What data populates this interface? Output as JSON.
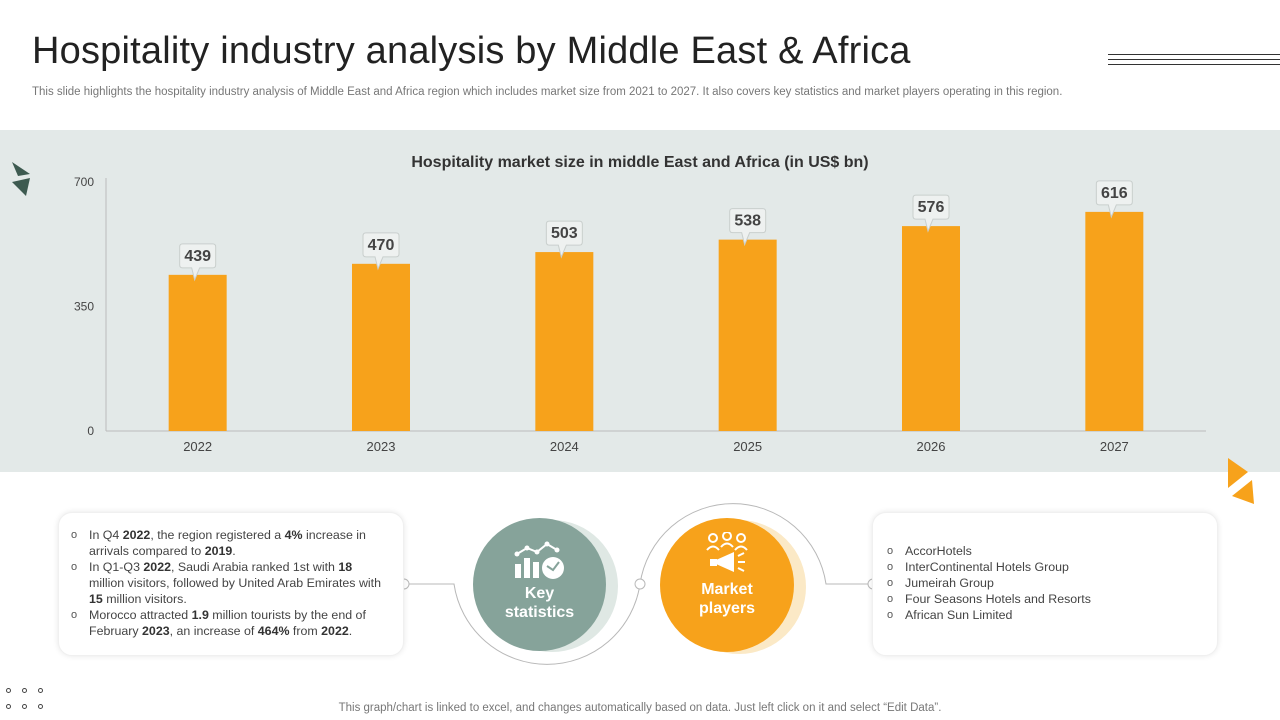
{
  "slide": {
    "title": "Hospitality industry analysis by Middle East & Africa",
    "subtitle": "This slide highlights the hospitality industry analysis of Middle East and Africa region which includes market size from 2021 to 2027. It also covers key statistics and market players operating in this region.",
    "footer": "This graph/chart is linked to excel, and changes automatically based on data. Just left click on it and select “Edit Data”."
  },
  "chart_data": {
    "type": "bar",
    "title": "Hospitality market size in middle East and Africa (in US$ bn)",
    "categories": [
      "2022",
      "2023",
      "2024",
      "2025",
      "2026",
      "2027"
    ],
    "values": [
      439,
      470,
      503,
      538,
      576,
      616
    ],
    "ylim": [
      0,
      700
    ],
    "yticks": [
      0,
      350,
      700
    ],
    "xlabel": "",
    "ylabel": "",
    "bar_color": "#f7a21b",
    "grid": false
  },
  "key_statistics": {
    "label_line1": "Key",
    "label_line2": "statistics",
    "icon": "growth-chart-icon",
    "color": "#86a39a",
    "items": [
      {
        "parts": [
          [
            "In Q4 ",
            false
          ],
          [
            "2022",
            true
          ],
          [
            ", the region registered a ",
            false
          ],
          [
            "4%",
            true
          ],
          [
            " increase in arrivals  compared to ",
            false
          ],
          [
            "2019",
            true
          ],
          [
            ".",
            false
          ]
        ]
      },
      {
        "parts": [
          [
            "In Q1-Q3 ",
            false
          ],
          [
            "2022",
            true
          ],
          [
            ", Saudi Arabia ranked 1st with ",
            false
          ],
          [
            "18",
            true
          ],
          [
            " million visitors, followed  by United Arab Emirates with ",
            false
          ],
          [
            "15",
            true
          ],
          [
            " million visitors.",
            false
          ]
        ]
      },
      {
        "parts": [
          [
            "Morocco attracted ",
            false
          ],
          [
            "1.9",
            true
          ],
          [
            " million tourists by the end of February ",
            false
          ],
          [
            "2023",
            true
          ],
          [
            ", an increase of ",
            false
          ],
          [
            "464%",
            true
          ],
          [
            "  from ",
            false
          ],
          [
            "2022",
            true
          ],
          [
            ".",
            false
          ]
        ]
      }
    ]
  },
  "market_players": {
    "label_line1": "Market",
    "label_line2": "players",
    "icon": "team-megaphone-icon",
    "color": "#f7a21b",
    "items": [
      "AccorHotels",
      "InterContinental  Hotels Group",
      "Jumeirah  Group",
      "Four Seasons Hotels and Resorts",
      "African Sun Limited"
    ]
  }
}
